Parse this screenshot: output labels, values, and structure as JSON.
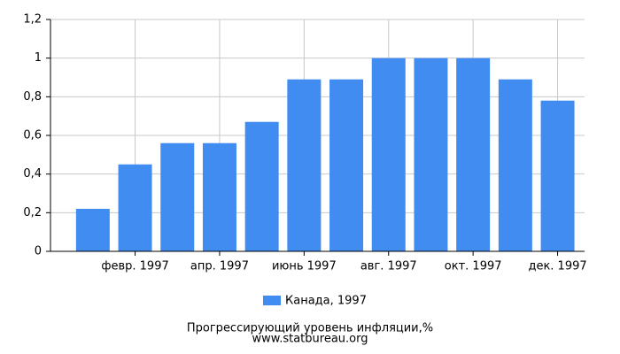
{
  "chart_data": {
    "type": "bar",
    "categories": [
      null,
      "февр. 1997",
      null,
      "апр. 1997",
      null,
      "июнь 1997",
      null,
      "авг. 1997",
      null,
      "окт. 1997",
      null,
      "дек. 1997"
    ],
    "series": [
      {
        "name": "Канада, 1997",
        "color": "#418cf0",
        "values": [
          0.22,
          0.45,
          0.56,
          0.56,
          0.67,
          0.89,
          0.89,
          1.0,
          1.0,
          1.0,
          0.89,
          0.78
        ]
      }
    ],
    "ylim": [
      0,
      1.2
    ],
    "yticks": [
      0,
      {
        "value": 0.2,
        "label": "0,2"
      },
      {
        "value": 0.4,
        "label": "0,4"
      },
      {
        "value": 0.6,
        "label": "0,6"
      },
      {
        "value": 0.8,
        "label": "0,8"
      },
      1,
      {
        "value": 1.2,
        "label": "1,2"
      }
    ],
    "grid": true,
    "title": "Прогрессирующий уровень инфляции,%",
    "subtitle": "www.statbureau.org"
  }
}
